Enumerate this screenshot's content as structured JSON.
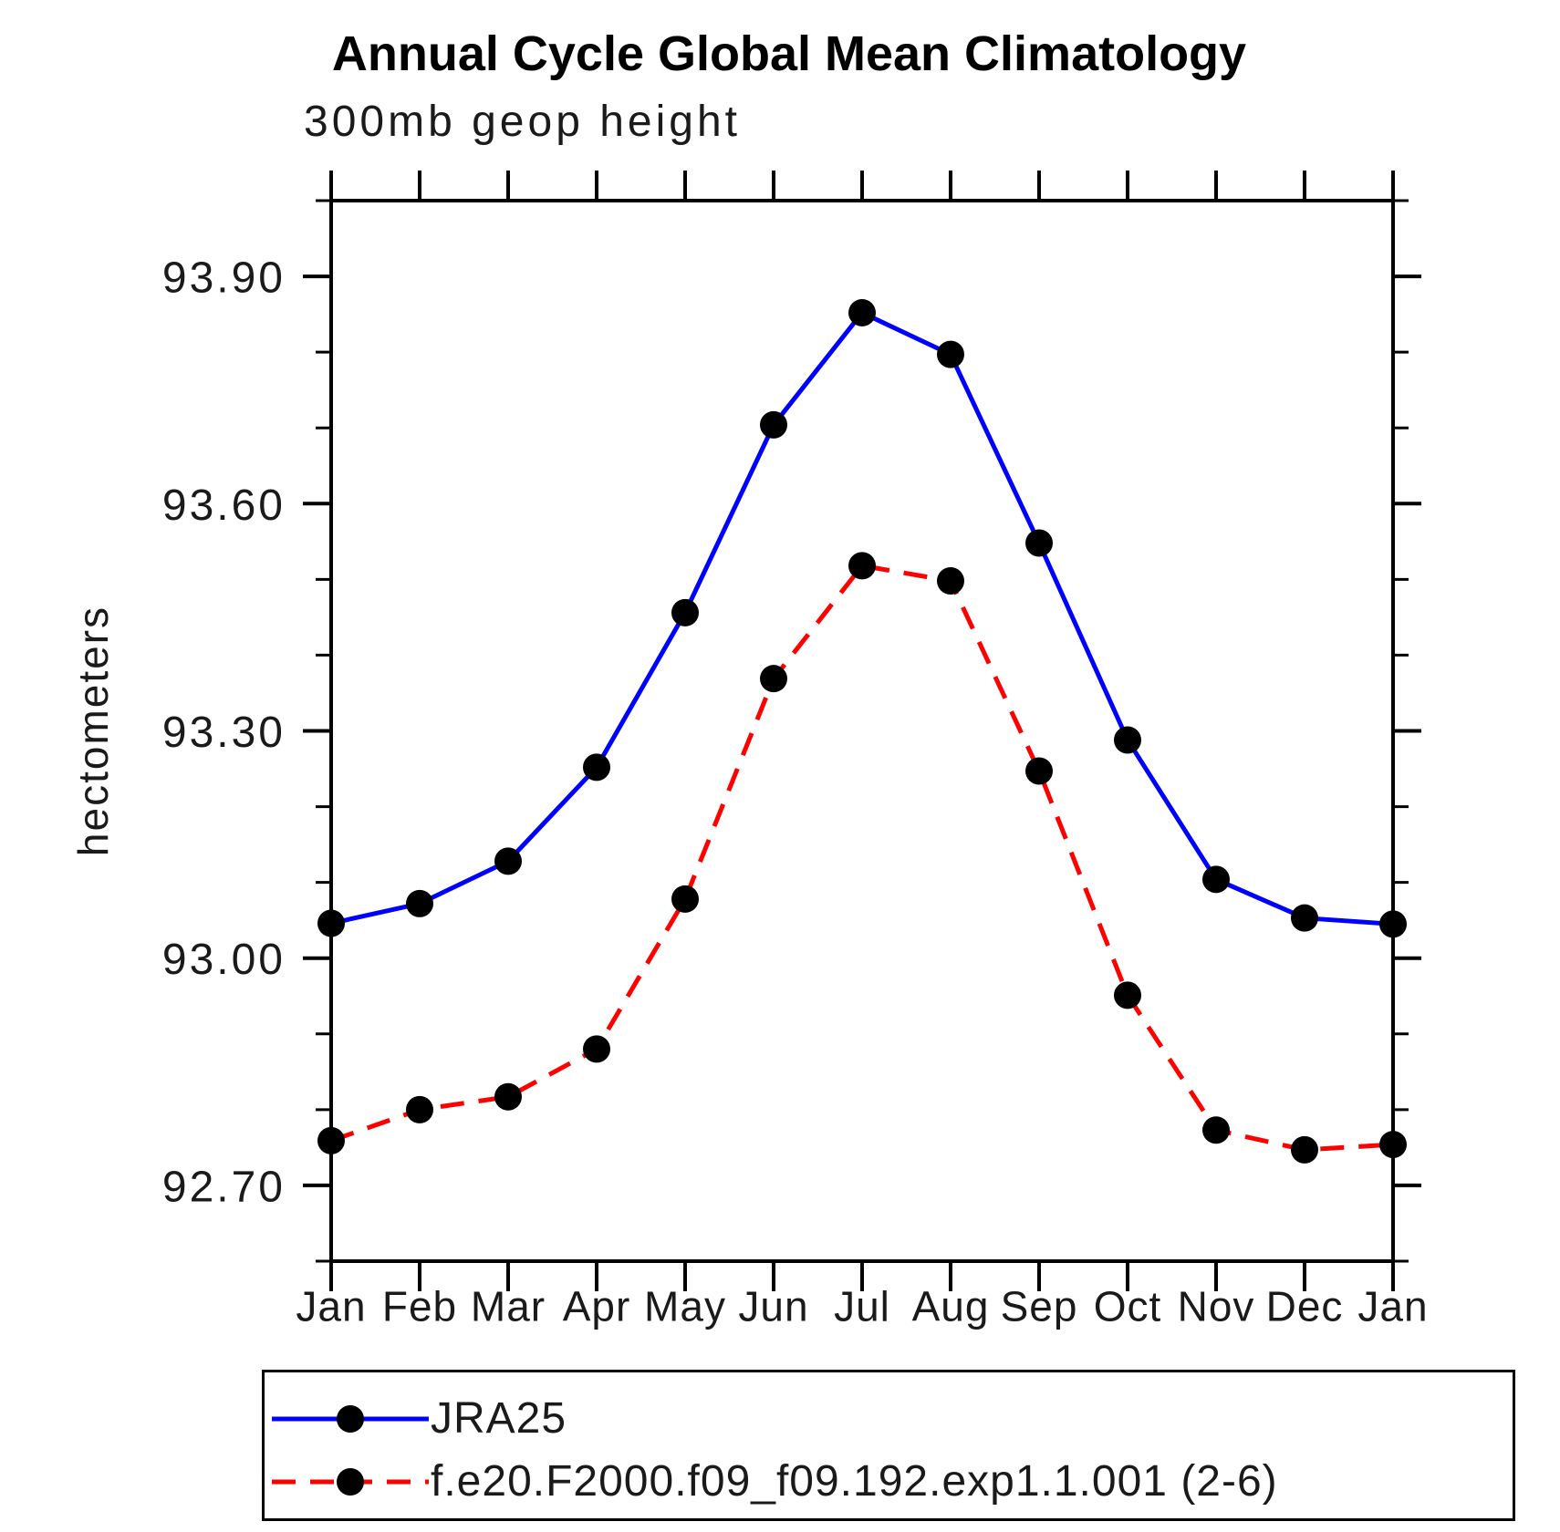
{
  "chart_data": {
    "type": "line",
    "title": "Annual Cycle Global Mean Climatology",
    "subtitle": "300mb geop height",
    "xlabel": "",
    "ylabel": "hectometers",
    "x_categories": [
      "Jan",
      "Feb",
      "Mar",
      "Apr",
      "May",
      "Jun",
      "Jul",
      "Aug",
      "Sep",
      "Oct",
      "Nov",
      "Dec",
      "Jan"
    ],
    "ylim": [
      92.6,
      94.0
    ],
    "ytick_major": [
      92.7,
      93.0,
      93.3,
      93.6,
      93.9
    ],
    "ytick_major_labels": [
      "92.70",
      "93.00",
      "93.30",
      "93.60",
      "93.90"
    ],
    "ytick_minor": [
      92.6,
      92.8,
      92.9,
      93.1,
      93.2,
      93.4,
      93.5,
      93.7,
      93.8,
      94.0
    ],
    "grid": false,
    "legend_position": "below-plot-box",
    "axis_color": "#000000",
    "series": [
      {
        "name": "JRA25",
        "color": "#0000ff",
        "line_style": "solid",
        "marker": "filled-circle",
        "marker_color": "#000000",
        "values": [
          93.046,
          93.072,
          93.128,
          93.252,
          93.456,
          93.704,
          93.852,
          93.797,
          93.548,
          93.288,
          93.104,
          93.053,
          93.045
        ]
      },
      {
        "name": "f.e20.F2000.f09_f09.192.exp1.1.001 (2-6)",
        "color": "#ff0000",
        "line_style": "dashed",
        "marker": "filled-circle",
        "marker_color": "#000000",
        "values": [
          92.759,
          92.8,
          92.817,
          92.88,
          93.078,
          93.369,
          93.518,
          93.498,
          93.247,
          92.951,
          92.773,
          92.747,
          92.754
        ]
      }
    ]
  }
}
